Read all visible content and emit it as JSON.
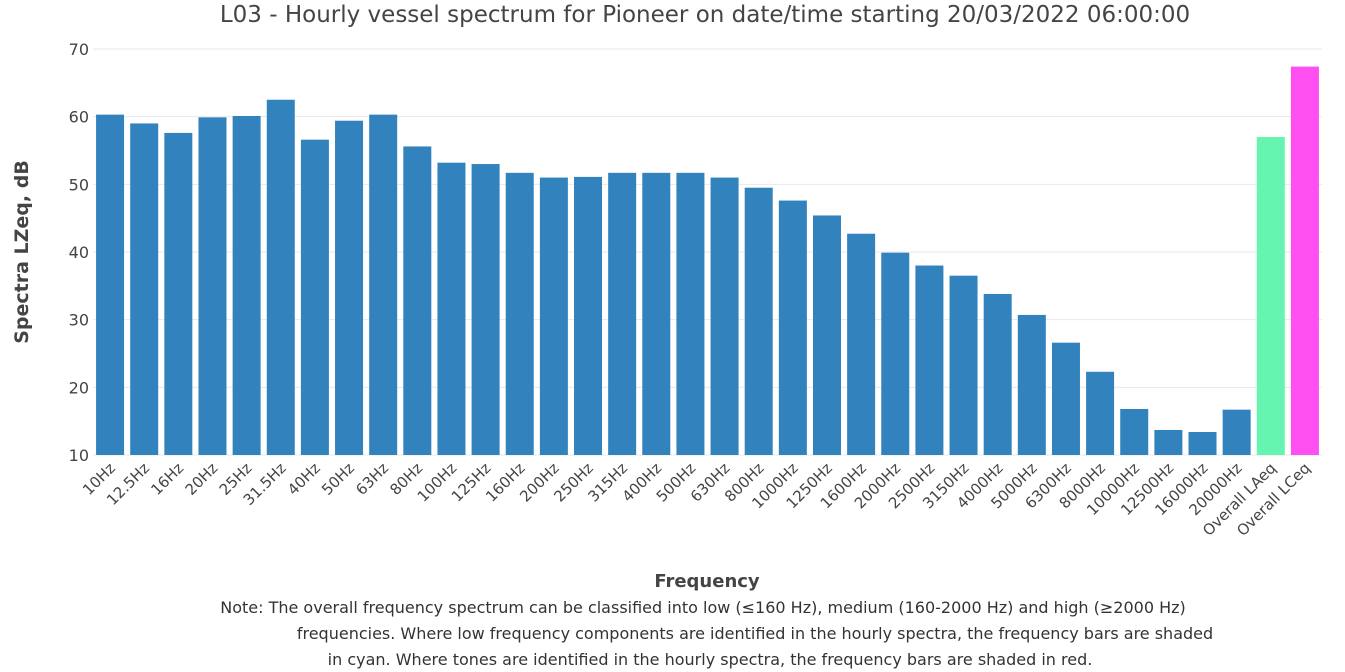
{
  "chart_data": {
    "type": "bar",
    "title": "L03 - Hourly vessel spectrum for Pioneer on date/time starting 20/03/2022 06:00:00",
    "x_label": "Frequency",
    "y_label": "Spectra LZeq, dB",
    "note": [
      "Note: The overall frequency spectrum can be classified into low (≤160 Hz), medium (160-2000 Hz) and high (≥2000 Hz)",
      "frequencies. Where low frequency components are identified in the hourly spectra, the frequency bars are shaded",
      "in cyan. Where tones are identified in the hourly spectra, the frequency bars are shaded in red."
    ],
    "categories": [
      "10Hz",
      "12.5Hz",
      "16Hz",
      "20Hz",
      "25Hz",
      "31.5Hz",
      "40Hz",
      "50Hz",
      "63Hz",
      "80Hz",
      "100Hz",
      "125Hz",
      "160Hz",
      "200Hz",
      "250Hz",
      "315Hz",
      "400Hz",
      "500Hz",
      "630Hz",
      "800Hz",
      "1000Hz",
      "1250Hz",
      "1600Hz",
      "2000Hz",
      "2500Hz",
      "3150Hz",
      "4000Hz",
      "5000Hz",
      "6300Hz",
      "8000Hz",
      "10000Hz",
      "12500Hz",
      "16000Hz",
      "20000Hz",
      "Overall LAeq",
      "Overall LCeq"
    ],
    "values": [
      60.3,
      59.0,
      57.6,
      59.9,
      60.1,
      62.5,
      56.6,
      59.4,
      60.3,
      55.6,
      53.2,
      53.0,
      51.7,
      51.0,
      51.1,
      51.7,
      51.7,
      51.7,
      51.0,
      49.5,
      47.6,
      45.4,
      42.7,
      39.9,
      38.0,
      36.5,
      33.8,
      30.7,
      26.6,
      22.3,
      16.8,
      13.7,
      13.4,
      16.7,
      57.0,
      67.4
    ],
    "colors": [
      "#3182bd",
      "#3182bd",
      "#3182bd",
      "#3182bd",
      "#3182bd",
      "#3182bd",
      "#3182bd",
      "#3182bd",
      "#3182bd",
      "#3182bd",
      "#3182bd",
      "#3182bd",
      "#3182bd",
      "#3182bd",
      "#3182bd",
      "#3182bd",
      "#3182bd",
      "#3182bd",
      "#3182bd",
      "#3182bd",
      "#3182bd",
      "#3182bd",
      "#3182bd",
      "#3182bd",
      "#3182bd",
      "#3182bd",
      "#3182bd",
      "#3182bd",
      "#3182bd",
      "#3182bd",
      "#3182bd",
      "#3182bd",
      "#3182bd",
      "#3182bd",
      "#66f5b0",
      "#ff4ff0"
    ],
    "ylim": [
      10,
      70
    ],
    "yticks": [
      10,
      20,
      30,
      40,
      50,
      60,
      70
    ],
    "grid": true
  }
}
